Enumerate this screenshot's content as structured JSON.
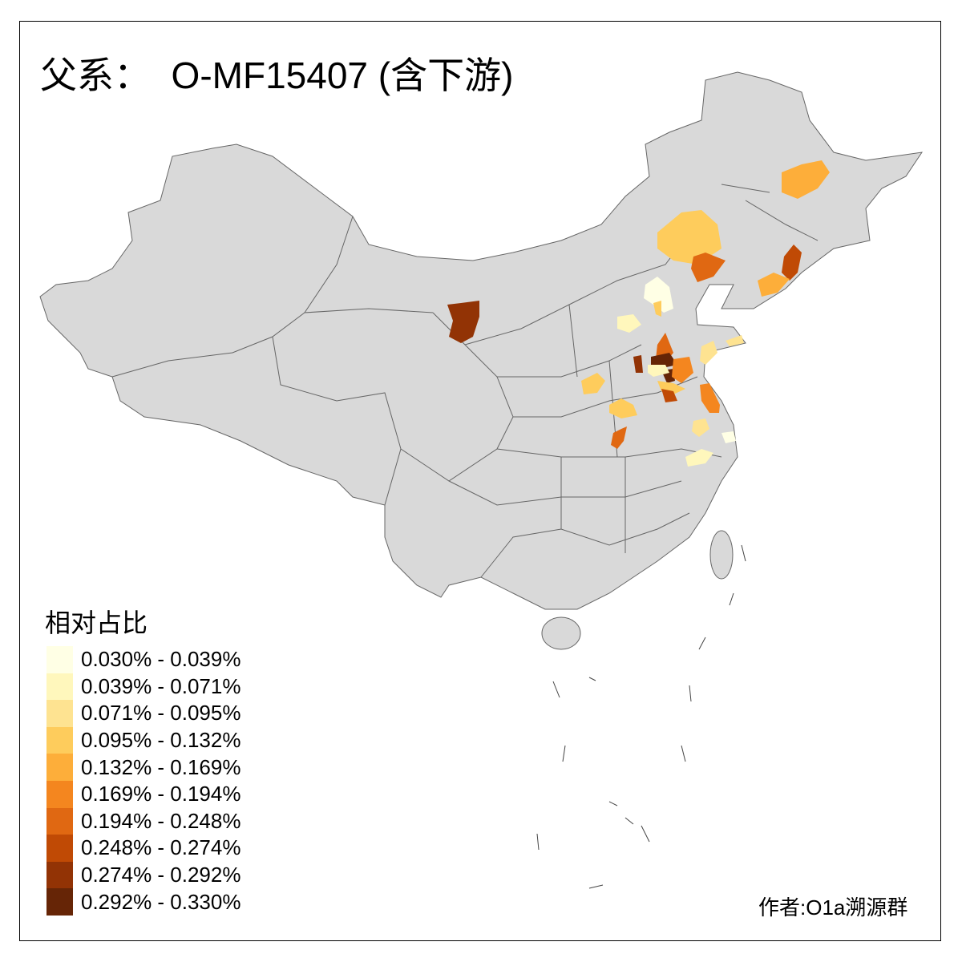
{
  "title": "父系：  O-MF15407 (含下游)",
  "legend": {
    "title": "相对占比",
    "bins": [
      {
        "label": "0.030% - 0.039%",
        "color": "#FFFFE5"
      },
      {
        "label": "0.039% - 0.071%",
        "color": "#FFF7BC"
      },
      {
        "label": "0.071% - 0.095%",
        "color": "#FEE391"
      },
      {
        "label": "0.095% - 0.132%",
        "color": "#FECC5C"
      },
      {
        "label": "0.132% - 0.169%",
        "color": "#FDAE3A"
      },
      {
        "label": "0.169% - 0.194%",
        "color": "#F4861F"
      },
      {
        "label": "0.194% - 0.248%",
        "color": "#E06812"
      },
      {
        "label": "0.248% - 0.274%",
        "color": "#C04A05"
      },
      {
        "label": "0.274% - 0.292%",
        "color": "#923305"
      },
      {
        "label": "0.292% - 0.330%",
        "color": "#662506"
      }
    ]
  },
  "base_color": "#D9D9D9",
  "credit": "作者:O1a溯源群"
}
